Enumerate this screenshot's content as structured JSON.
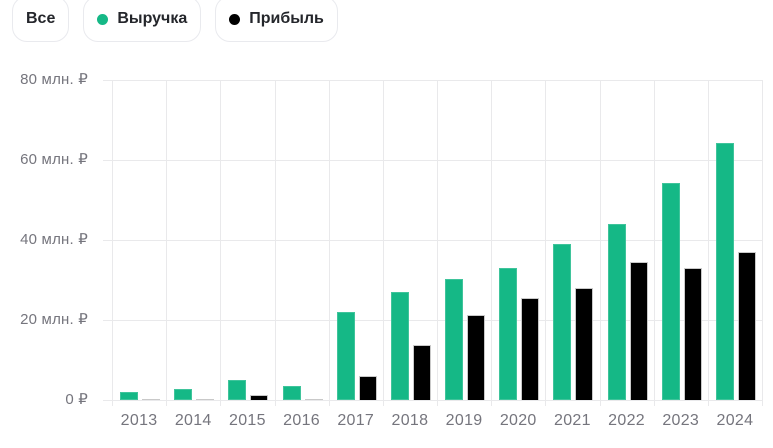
{
  "toolbar": {
    "all_label": "Все"
  },
  "chart_data": {
    "type": "bar",
    "title": "",
    "categories": [
      "2013",
      "2014",
      "2015",
      "2016",
      "2017",
      "2018",
      "2019",
      "2020",
      "2021",
      "2022",
      "2023",
      "2024"
    ],
    "series": [
      {
        "name": "Выручка",
        "color": "#15b886",
        "values": [
          1.9,
          2.7,
          4.9,
          3.6,
          22,
          27,
          30.3,
          33,
          39,
          44,
          54.3,
          64.2
        ]
      },
      {
        "name": "Прибыль",
        "color": "#000000",
        "values": [
          0.2,
          0.3,
          1.3,
          0.3,
          6.1,
          13.7,
          21.2,
          25.5,
          28.1,
          34.6,
          33,
          37.1
        ]
      }
    ],
    "xlabel": "",
    "ylabel": "",
    "y_unit": "млн. ₽",
    "ylim": [
      0,
      80
    ],
    "y_tick_labels": [
      "80 млн. ₽",
      "60 млн. ₽",
      "40 млн. ₽",
      "20 млн. ₽",
      "0 ₽"
    ],
    "grid": true,
    "legend_position": "top"
  }
}
